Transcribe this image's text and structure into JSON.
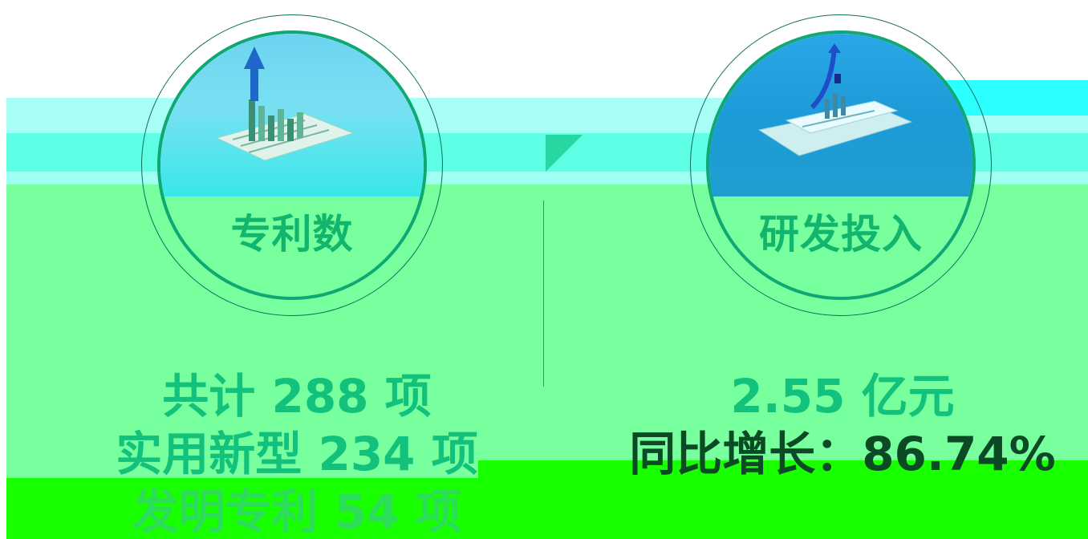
{
  "cards": [
    {
      "title": "专利数",
      "icon": "bar-chart-growth-icon",
      "lines": [
        "共计 288 项",
        "实用新型 234 项",
        "发明专利 54 项"
      ]
    },
    {
      "title": "研发投入",
      "icon": "financial-report-icon",
      "lines": [
        "2.55 亿元",
        "同比增长：86.74%"
      ]
    }
  ],
  "colors": {
    "accent_green": "#12b56d",
    "background_green": "#78ff9e",
    "band_cyan": "#5fffe6",
    "bottom_band": "#18ff00"
  }
}
